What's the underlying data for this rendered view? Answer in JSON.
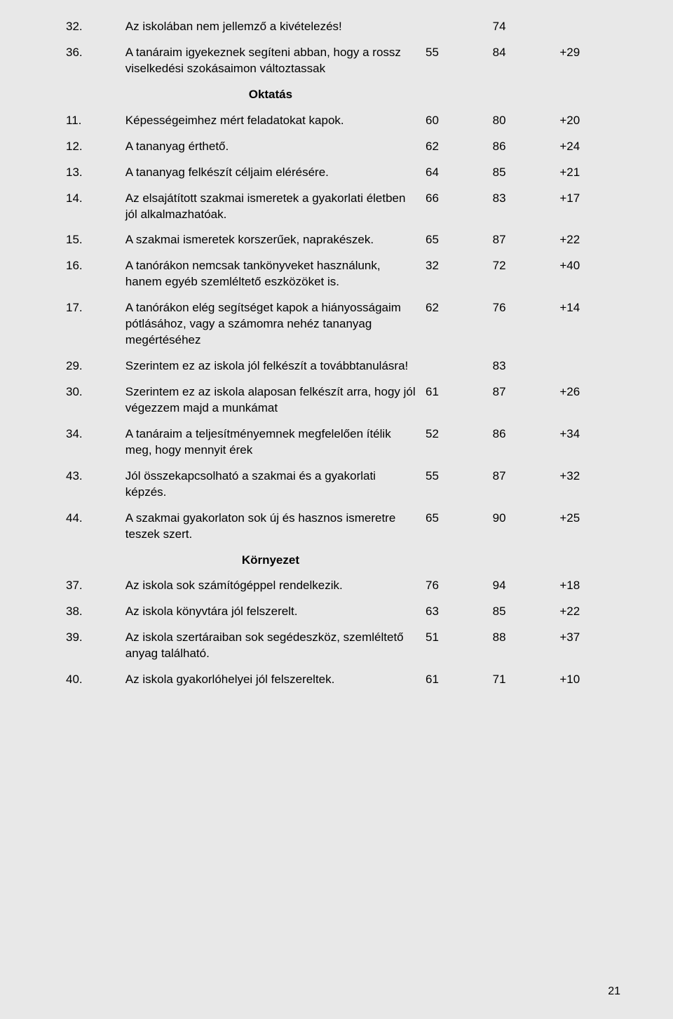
{
  "pageNumber": "21",
  "background": "#e8e8e8",
  "font": {
    "family": "Verdana",
    "size_pt": 12,
    "color": "#000000"
  },
  "sections": [
    "Oktatás",
    "Környezet"
  ],
  "rows": [
    {
      "n": "32.",
      "text": "Az iskolában nem jellemző a kivételezés!",
      "c1": "",
      "c2": "74",
      "c3": ""
    },
    {
      "n": "36.",
      "text": "A tanáraim igyekeznek segíteni abban, hogy a rossz viselkedési szokásaimon változtassak",
      "c1": "55",
      "c2": "84",
      "c3": "+29"
    },
    {
      "section": "Oktatás"
    },
    {
      "n": "11.",
      "text": "Képességeimhez mért feladatokat kapok.",
      "c1": "60",
      "c2": "80",
      "c3": "+20"
    },
    {
      "n": "12.",
      "text": "A tananyag érthető.",
      "c1": "62",
      "c2": "86",
      "c3": "+24"
    },
    {
      "n": "13.",
      "text": "A tananyag felkészít céljaim elérésére.",
      "c1": "64",
      "c2": "85",
      "c3": "+21"
    },
    {
      "n": "14.",
      "text": "Az elsajátított szakmai ismeretek a gyakorlati életben jól alkalmazhatóak.",
      "c1": "66",
      "c2": "83",
      "c3": "+17"
    },
    {
      "n": "15.",
      "text": "A szakmai ismeretek korszerűek, naprakészek.",
      "c1": "65",
      "c2": "87",
      "c3": "+22"
    },
    {
      "n": "16.",
      "text": "A tanórákon nemcsak tankönyveket használunk, hanem egyéb szemléltető eszközöket is.",
      "c1": "32",
      "c2": "72",
      "c3": "+40"
    },
    {
      "n": "17.",
      "text": "A tanórákon elég segítséget kapok a hiányosságaim pótlásához, vagy a számomra nehéz tananyag megértéséhez",
      "c1": "62",
      "c2": "76",
      "c3": "+14"
    },
    {
      "n": "29.",
      "text": "Szerintem ez az iskola jól felkészít a továbbtanulásra!",
      "c1": "",
      "c2": "83",
      "c3": ""
    },
    {
      "n": "30.",
      "text": "Szerintem ez az iskola alaposan felkészít arra, hogy jól végezzem majd a munkámat",
      "c1": "61",
      "c2": "87",
      "c3": "+26"
    },
    {
      "n": "34.",
      "text": "A tanáraim a teljesítményemnek megfelelően ítélik meg, hogy mennyit érek",
      "c1": "52",
      "c2": "86",
      "c3": "+34"
    },
    {
      "n": "43.",
      "text": "Jól összekapcsolható a szakmai és a gyakorlati képzés.",
      "c1": "55",
      "c2": "87",
      "c3": "+32"
    },
    {
      "n": "44.",
      "text": "A szakmai gyakorlaton sok új és hasznos ismeretre teszek szert.",
      "c1": "65",
      "c2": "90",
      "c3": "+25"
    },
    {
      "section": "Környezet"
    },
    {
      "n": "37.",
      "text": "Az iskola sok számítógéppel rendelkezik.",
      "c1": "76",
      "c2": "94",
      "c3": "+18"
    },
    {
      "n": "38.",
      "text": "Az iskola könyvtára jól felszerelt.",
      "c1": "63",
      "c2": "85",
      "c3": "+22"
    },
    {
      "n": "39.",
      "text": "Az iskola szertáraiban sok segédeszköz, szemléltető anyag található.",
      "c1": "51",
      "c2": "88",
      "c3": "+37"
    },
    {
      "n": "40.",
      "text": "Az iskola gyakorlóhelyei jól felszereltek.",
      "c1": "61",
      "c2": "71",
      "c3": "+10"
    }
  ]
}
